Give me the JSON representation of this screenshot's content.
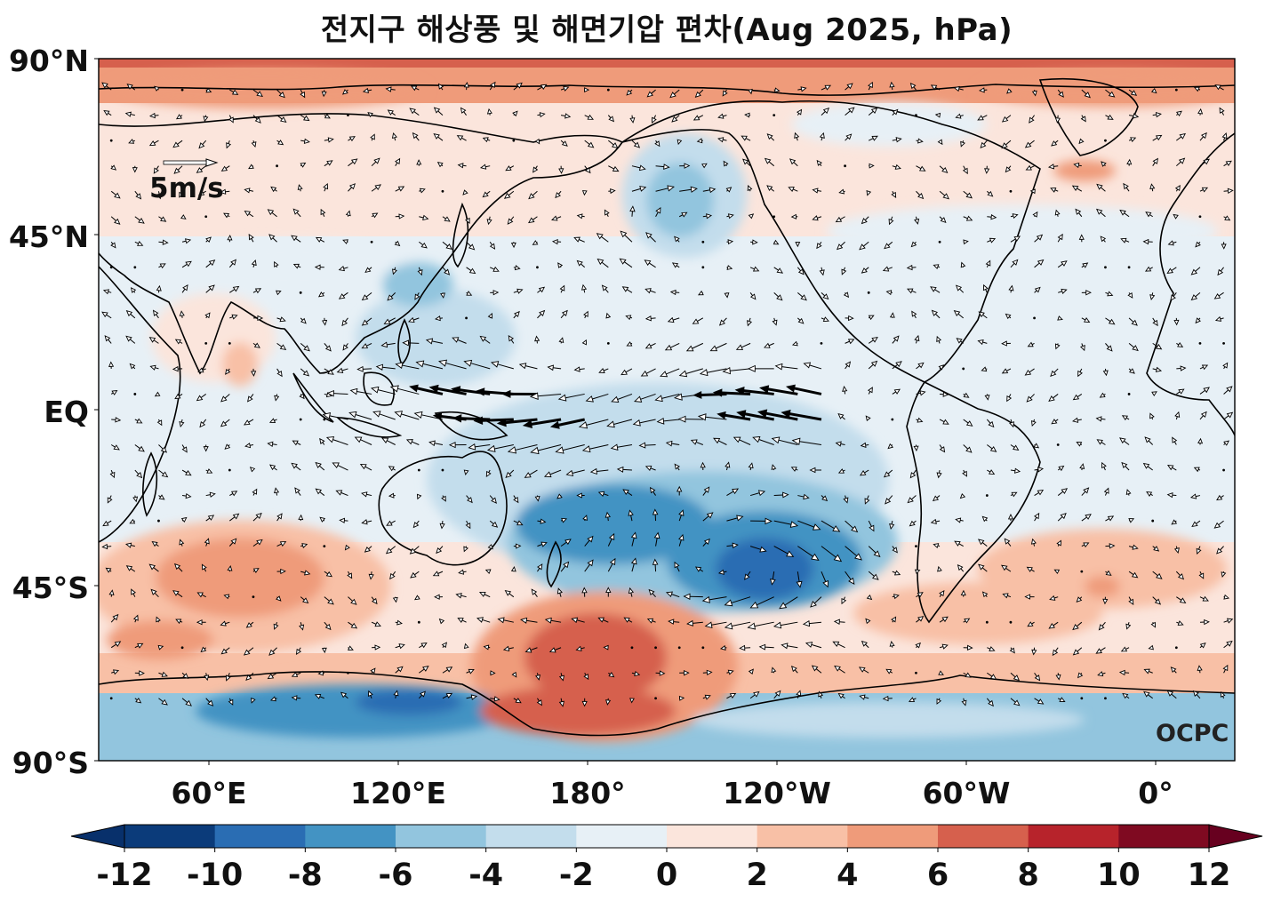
{
  "title": "전지구 해상풍 및 해면기압 편차(Aug 2025, hPa)",
  "map": {
    "lat_ticks": [
      "90°N",
      "45°N",
      "EQ",
      "45°S",
      "90°S"
    ],
    "lon_ticks": [
      "60°E",
      "120°E",
      "180°",
      "120°W",
      "60°W",
      "0°"
    ],
    "reference_vector_label": "5m/s",
    "credit": "OCPC"
  },
  "colorbar": {
    "ticks": [
      "-12",
      "-10",
      "-8",
      "-6",
      "-4",
      "-2",
      "0",
      "2",
      "4",
      "6",
      "8",
      "10",
      "12"
    ],
    "colors": [
      "#0b3b7a",
      "#2a6db3",
      "#4393c3",
      "#92c5de",
      "#c3ddec",
      "#e7f0f6",
      "#fbe5dc",
      "#f8c0a6",
      "#ef9b7a",
      "#d6604d",
      "#b7232b",
      "#7f0a21"
    ],
    "under_color": "#08306b",
    "over_color": "#67001f"
  }
}
